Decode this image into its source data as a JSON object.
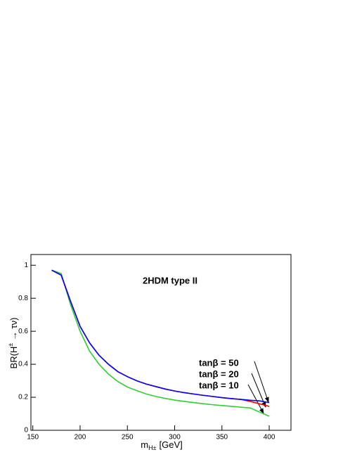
{
  "chart_data": {
    "type": "line",
    "annotation": "2HDM type II",
    "x_label": [
      "m",
      "H±",
      "[GeV]"
    ],
    "y_label": [
      "BR(H",
      "±",
      " → τν)"
    ],
    "x": [
      170,
      180,
      190,
      200,
      210,
      220,
      230,
      240,
      250,
      260,
      270,
      280,
      290,
      300,
      310,
      320,
      330,
      340,
      350,
      360,
      370,
      380,
      390,
      400
    ],
    "series": [
      {
        "name": "tanβ = 50",
        "color": "#0000ff",
        "values": [
          0.97,
          0.94,
          0.78,
          0.63,
          0.53,
          0.455,
          0.4,
          0.355,
          0.325,
          0.3,
          0.28,
          0.265,
          0.25,
          0.238,
          0.228,
          0.22,
          0.212,
          0.205,
          0.198,
          0.192,
          0.187,
          0.182,
          0.178,
          0.168
        ]
      },
      {
        "name": "tanβ = 20",
        "color": "#ff0000",
        "values": [
          0.97,
          0.94,
          0.78,
          0.63,
          0.53,
          0.455,
          0.4,
          0.355,
          0.325,
          0.3,
          0.28,
          0.265,
          0.25,
          0.238,
          0.228,
          0.22,
          0.212,
          0.205,
          0.198,
          0.192,
          0.187,
          0.175,
          0.16,
          0.145
        ]
      },
      {
        "name": "tanβ = 10",
        "color": "#33cc33",
        "values": [
          0.97,
          0.95,
          0.76,
          0.6,
          0.48,
          0.4,
          0.34,
          0.295,
          0.262,
          0.24,
          0.22,
          0.205,
          0.193,
          0.183,
          0.175,
          0.168,
          0.161,
          0.155,
          0.15,
          0.145,
          0.14,
          0.135,
          0.11,
          0.085
        ]
      }
    ],
    "xlim": [
      148,
      423
    ],
    "ylim": [
      0,
      1.065
    ],
    "xticks": [
      150,
      200,
      250,
      300,
      350,
      400
    ],
    "yticks": [
      0,
      0.2,
      0.4,
      0.6,
      0.8,
      1
    ]
  }
}
